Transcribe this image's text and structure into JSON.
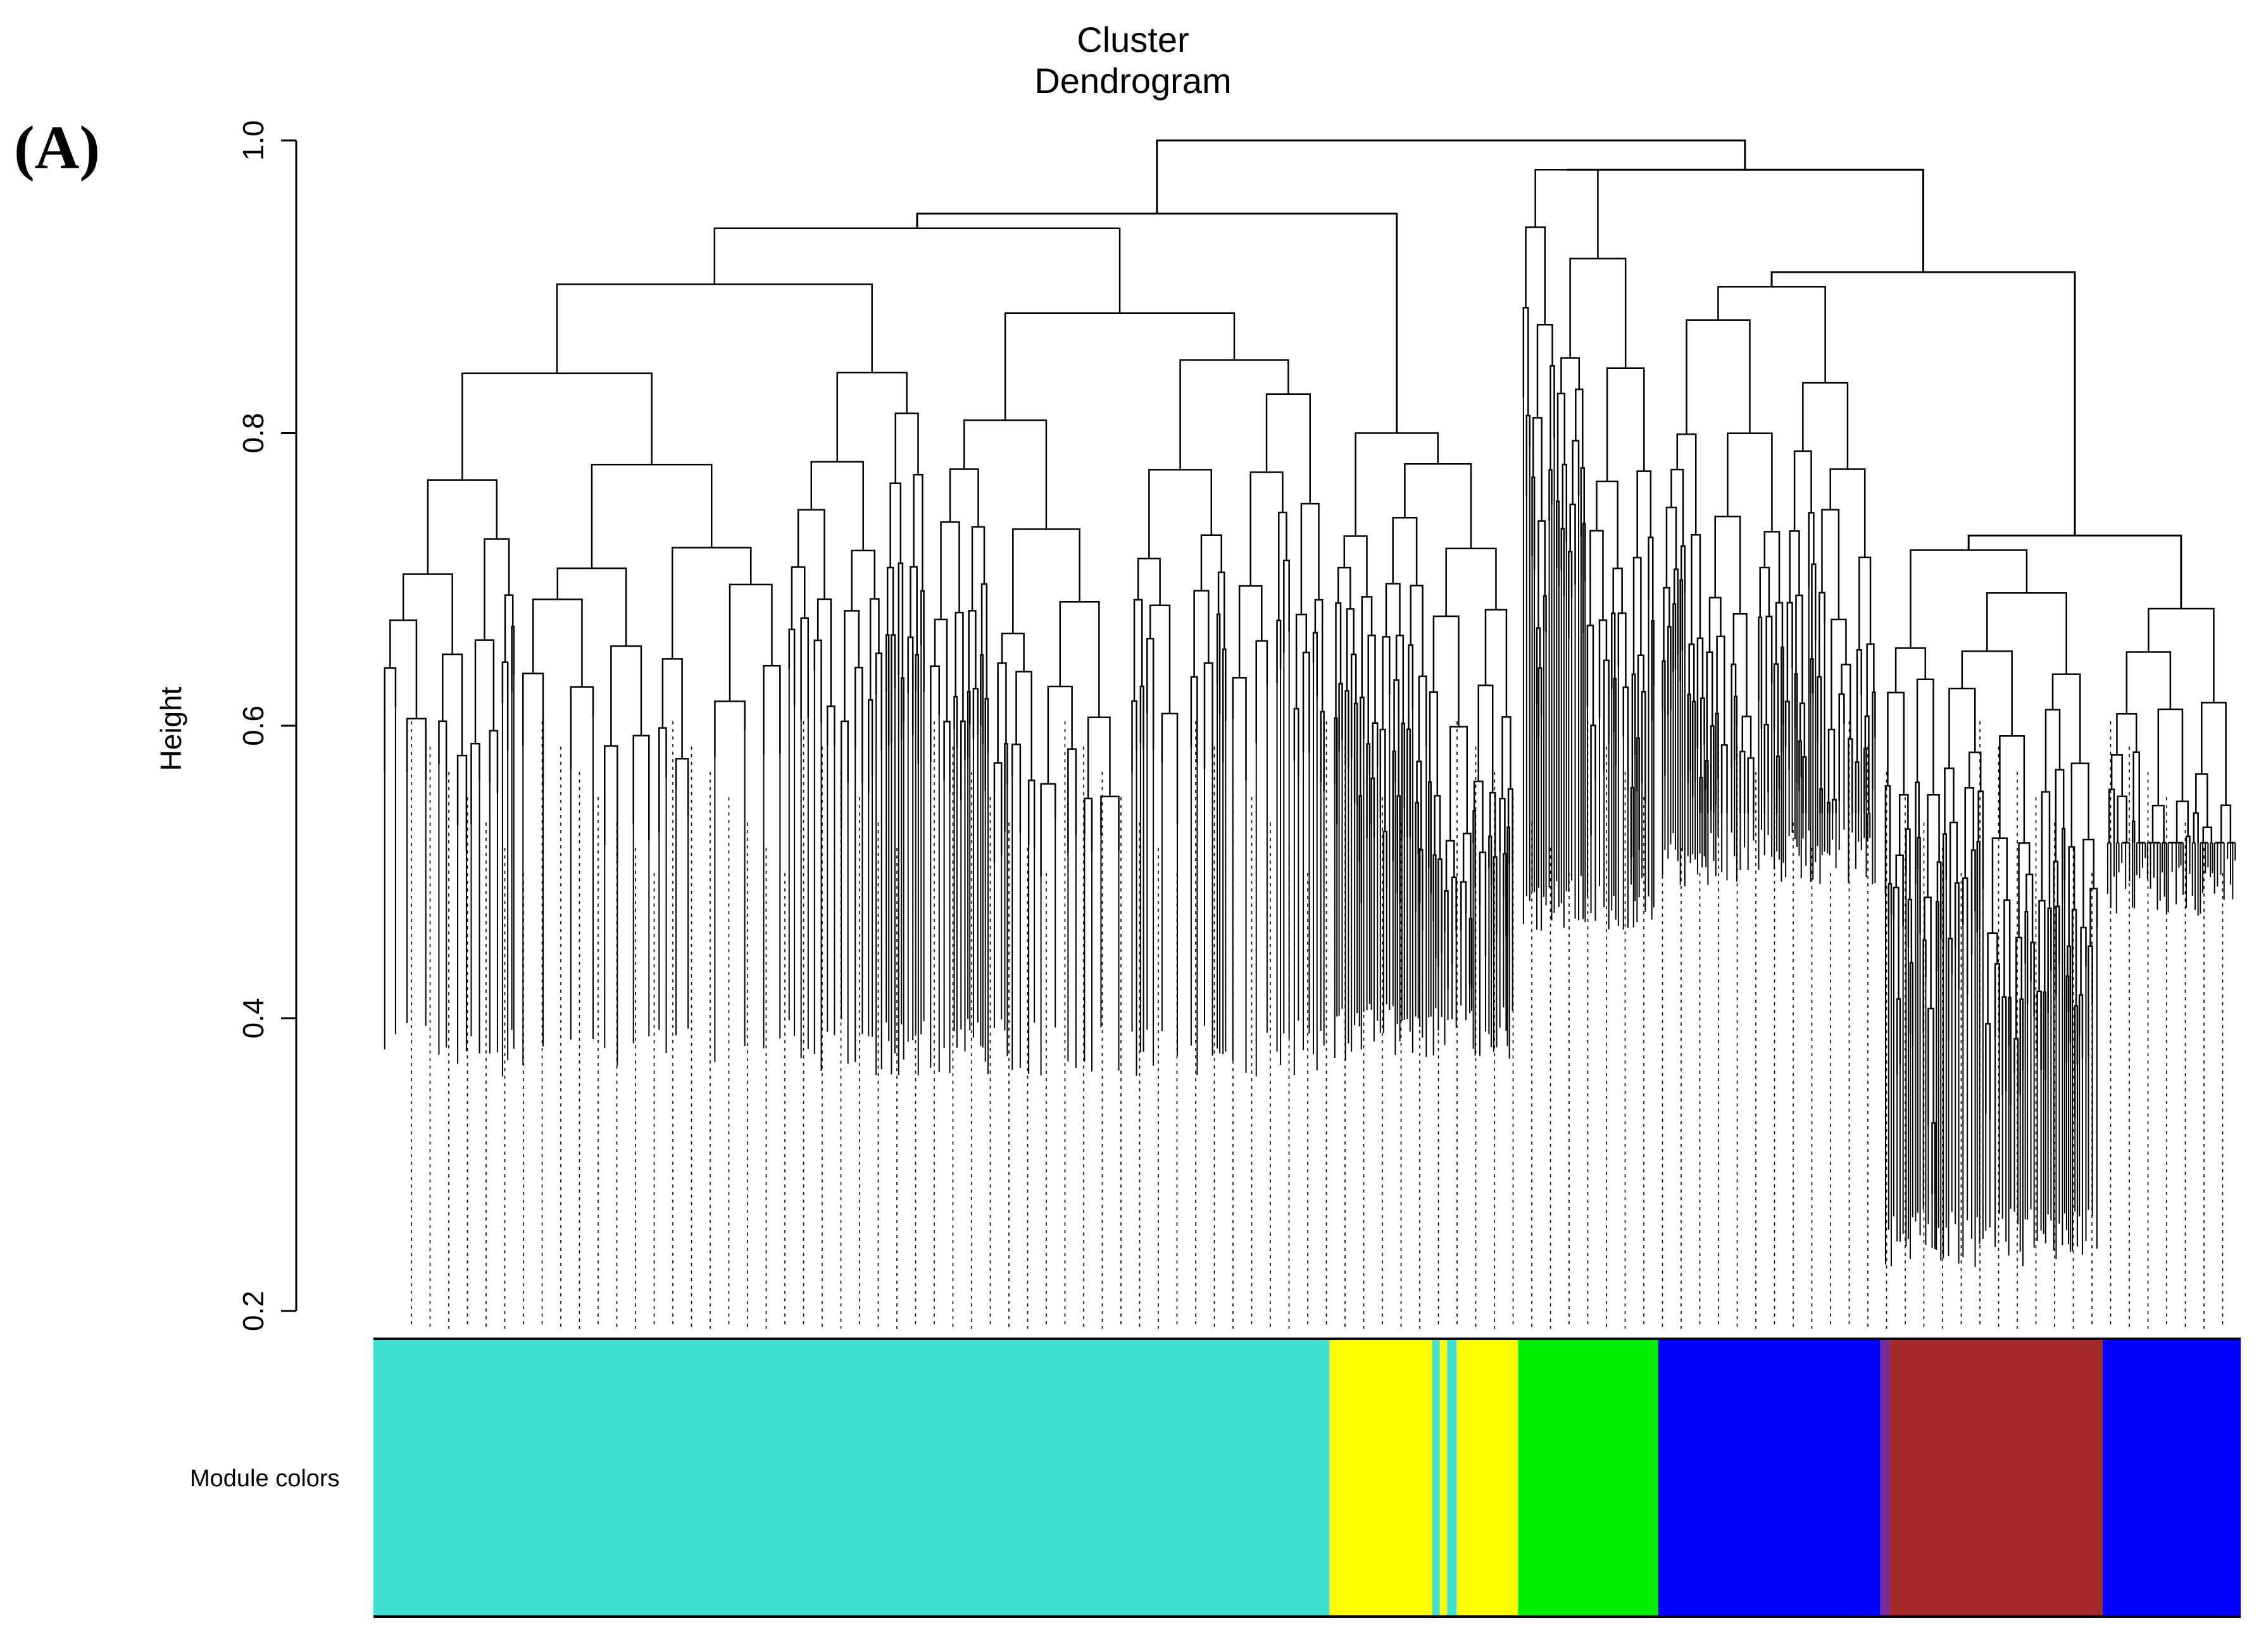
{
  "panel": {
    "label": "(A)"
  },
  "chart_data": {
    "type": "dendrogram",
    "title": "Cluster Dendrogram",
    "ylabel": "Height",
    "xlabel": "",
    "ylim": [
      0.2,
      1.0
    ],
    "yticks": [
      0.2,
      0.4,
      0.6,
      0.8,
      1.0
    ],
    "ytick_labels": [
      "0.2",
      "0.4",
      "0.6",
      "0.8",
      "1.0"
    ],
    "grid": false,
    "root_merge_height": 1.0,
    "dendrogram_approx": {
      "note_units": "height in data units",
      "major_merges": [
        {
          "group": "turquoise-left",
          "merge_height": 0.94,
          "leaf_min_height": 0.36
        },
        {
          "group": "yellow-middle",
          "merge_height": 0.8,
          "leaf_min_height": 0.37
        },
        {
          "group": "green",
          "merge_height": 0.98,
          "leaf_min_height": 0.46
        },
        {
          "group": "blue-left",
          "merge_height": 0.9,
          "leaf_min_height": 0.49
        },
        {
          "group": "brown",
          "merge_height": 0.72,
          "leaf_min_height": 0.23
        },
        {
          "group": "blue-right",
          "merge_height": 0.68,
          "leaf_min_height": 0.47
        }
      ]
    },
    "module_colors_label": "Module colors",
    "module_colors": [
      {
        "name": "turquoise",
        "color": "#40E0D0",
        "start": 0.0,
        "end": 0.512
      },
      {
        "name": "yellow",
        "color": "#FFFF00",
        "start": 0.512,
        "end": 0.567
      },
      {
        "name": "turquoise",
        "color": "#40E0D0",
        "start": 0.567,
        "end": 0.571
      },
      {
        "name": "yellow",
        "color": "#FFFF00",
        "start": 0.571,
        "end": 0.575
      },
      {
        "name": "turquoise",
        "color": "#40E0D0",
        "start": 0.575,
        "end": 0.58
      },
      {
        "name": "yellow",
        "color": "#FFFF00",
        "start": 0.58,
        "end": 0.613
      },
      {
        "name": "green",
        "color": "#00EE00",
        "start": 0.613,
        "end": 0.688
      },
      {
        "name": "blue",
        "color": "#0000FF",
        "start": 0.688,
        "end": 0.807
      },
      {
        "name": "purple",
        "color": "#7A2C9A",
        "start": 0.807,
        "end": 0.812
      },
      {
        "name": "brown",
        "color": "#A52A2A",
        "start": 0.812,
        "end": 0.926
      },
      {
        "name": "blue",
        "color": "#0000FF",
        "start": 0.926,
        "end": 1.0
      }
    ]
  }
}
